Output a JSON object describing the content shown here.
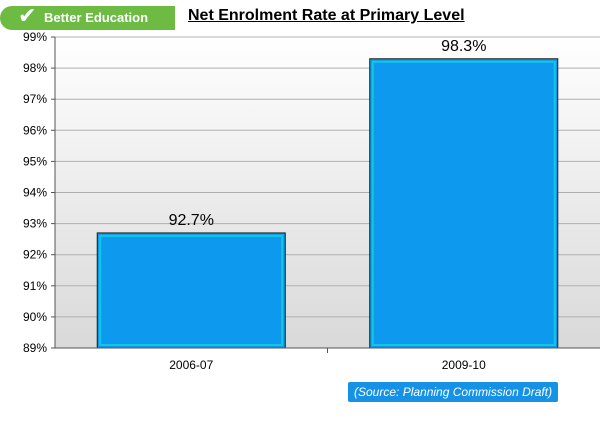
{
  "header": {
    "badge_label": "Better Education",
    "badge_icon": "check-icon",
    "badge_color": "#6dbb43"
  },
  "chart_data": {
    "type": "bar",
    "title": "Net Enrolment Rate at Primary Level",
    "categories": [
      "2006-07",
      "2009-10"
    ],
    "values": [
      92.7,
      98.3
    ],
    "data_labels": [
      "92.7%",
      "98.3%"
    ],
    "xlabel": "",
    "ylabel": "",
    "ylim": [
      89,
      99
    ],
    "yticks": [
      "89%",
      "90%",
      "91%",
      "92%",
      "93%",
      "94%",
      "95%",
      "96%",
      "97%",
      "98%",
      "99%"
    ],
    "grid": true,
    "bar_color": "#0d9aee",
    "bar_edge_color": "#13c7e3"
  },
  "footer": {
    "source_label": "(Source: ",
    "source_name": "Planning Commission Draft",
    "source_close": ")"
  }
}
